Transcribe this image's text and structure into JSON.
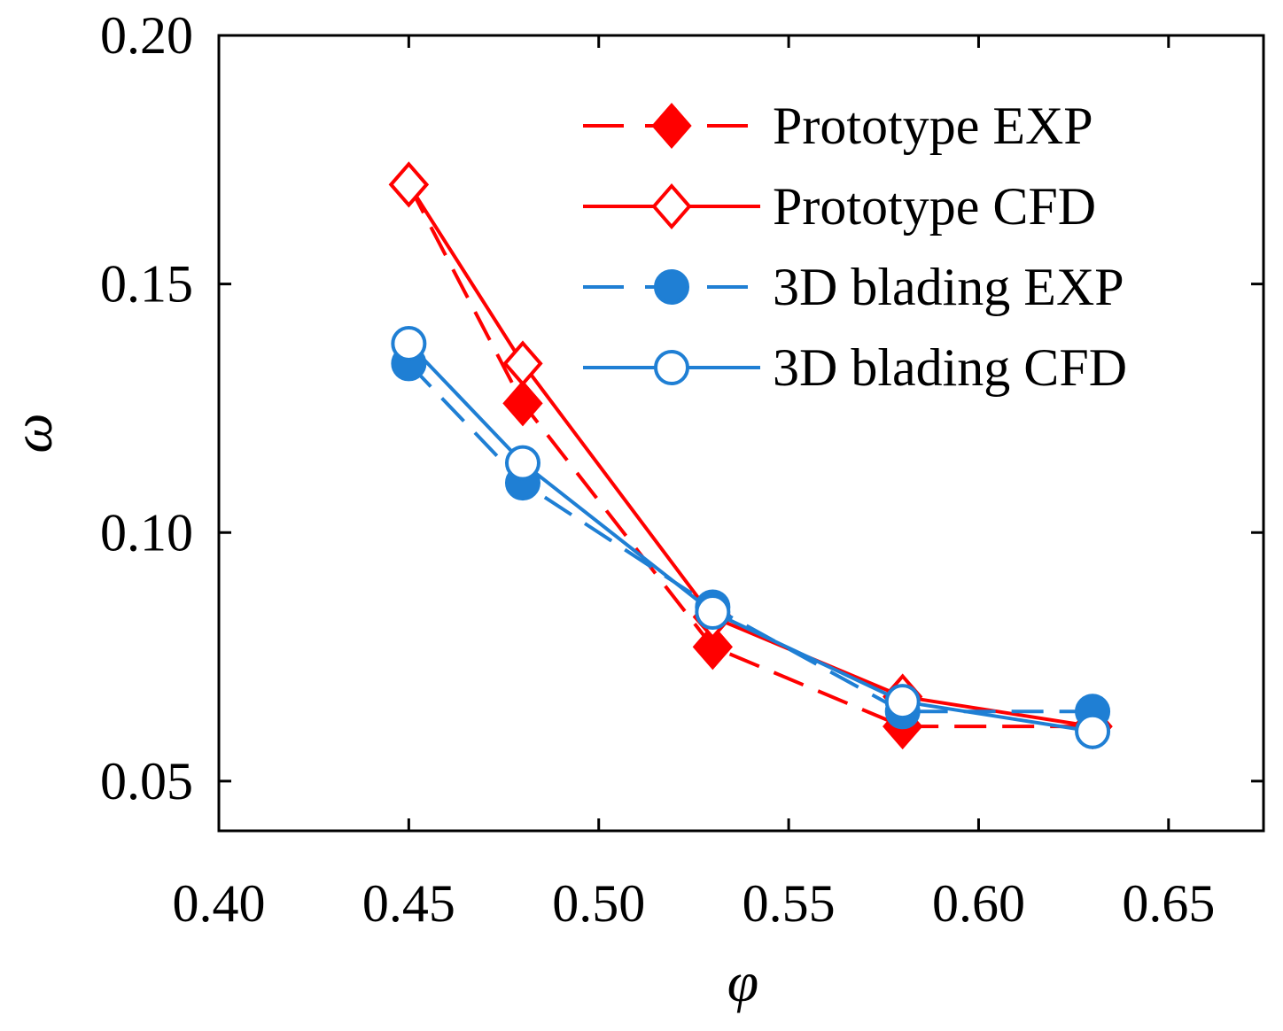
{
  "chart_data": {
    "type": "line",
    "title": "",
    "xlabel": "φ",
    "ylabel": "ω",
    "xlim": [
      0.4,
      0.675
    ],
    "ylim": [
      0.04,
      0.2
    ],
    "xticks": [
      0.4,
      0.45,
      0.5,
      0.55,
      0.6,
      0.65
    ],
    "xtick_labels": [
      "0.40",
      "0.45",
      "0.50",
      "0.55",
      "0.60",
      "0.65"
    ],
    "yticks": [
      0.05,
      0.1,
      0.15,
      0.2
    ],
    "ytick_labels": [
      "0.05",
      "0.10",
      "0.15",
      "0.20"
    ],
    "grid": false,
    "legend_position": "top-right",
    "series": [
      {
        "name": "Prototype EXP",
        "color": "#ff0000",
        "line": "dashed",
        "marker": "diamond",
        "marker_fill": "filled",
        "x": [
          0.45,
          0.48,
          0.53,
          0.58,
          0.63
        ],
        "y": [
          0.17,
          0.126,
          0.077,
          0.061,
          0.061
        ]
      },
      {
        "name": "Prototype CFD",
        "color": "#ff0000",
        "line": "solid",
        "marker": "diamond",
        "marker_fill": "open",
        "x": [
          0.45,
          0.48,
          0.53,
          0.58,
          0.63
        ],
        "y": [
          0.17,
          0.134,
          0.083,
          0.067,
          0.061
        ]
      },
      {
        "name": "3D blading EXP",
        "color": "#1f7fd4",
        "line": "dashed",
        "marker": "circle",
        "marker_fill": "filled",
        "x": [
          0.45,
          0.48,
          0.53,
          0.58,
          0.63
        ],
        "y": [
          0.134,
          0.11,
          0.085,
          0.064,
          0.064
        ]
      },
      {
        "name": "3D blading CFD",
        "color": "#1f7fd4",
        "line": "solid",
        "marker": "circle",
        "marker_fill": "open",
        "x": [
          0.45,
          0.48,
          0.53,
          0.58,
          0.63
        ],
        "y": [
          0.138,
          0.114,
          0.084,
          0.066,
          0.06
        ]
      }
    ]
  }
}
